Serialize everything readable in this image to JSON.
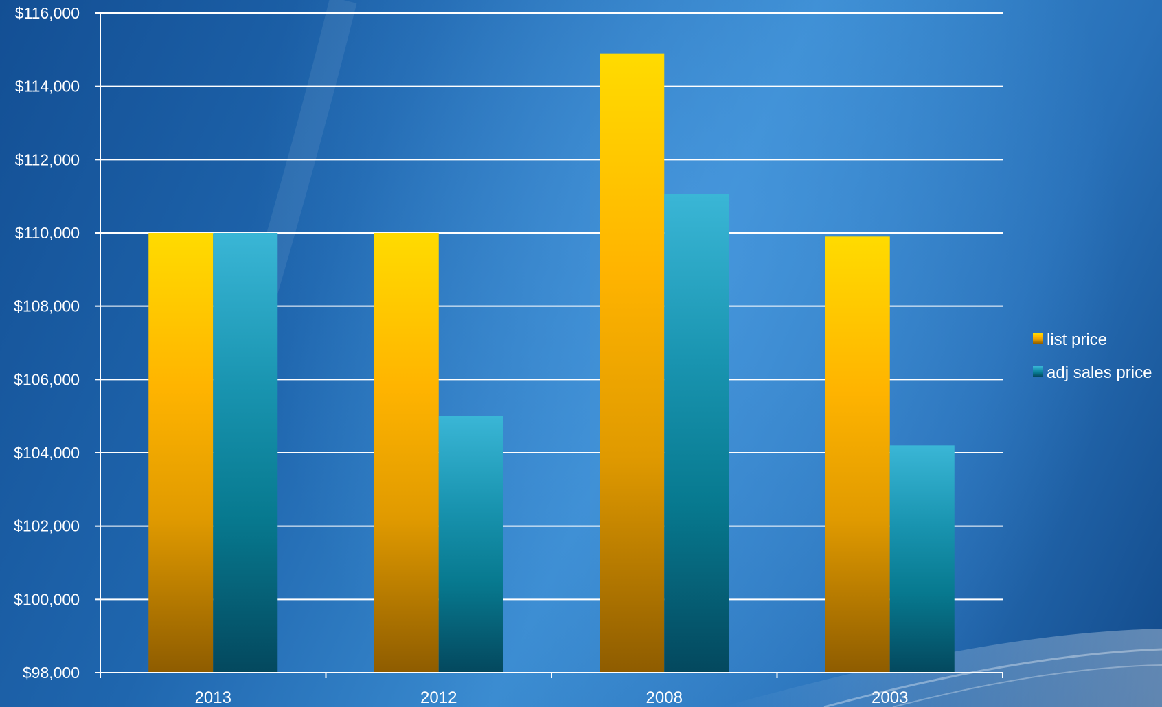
{
  "chart_data": {
    "type": "bar",
    "categories": [
      "2013",
      "2012",
      "2008",
      "2003"
    ],
    "series": [
      {
        "name": "list price",
        "values": [
          110000,
          110000,
          114900,
          109900
        ],
        "color": "#ffb300"
      },
      {
        "name": "adj sales price",
        "values": [
          110000,
          105000,
          111050,
          104200
        ],
        "color": "#1a9bb8"
      }
    ],
    "title": "",
    "xlabel": "",
    "ylabel": "",
    "ylim": [
      98000,
      116000
    ],
    "ytick_step": 2000,
    "yticks": [
      "$98,000",
      "$100,000",
      "$102,000",
      "$104,000",
      "$106,000",
      "$108,000",
      "$110,000",
      "$112,000",
      "$114,000",
      "$116,000"
    ],
    "grid": true,
    "legend_position": "right"
  }
}
